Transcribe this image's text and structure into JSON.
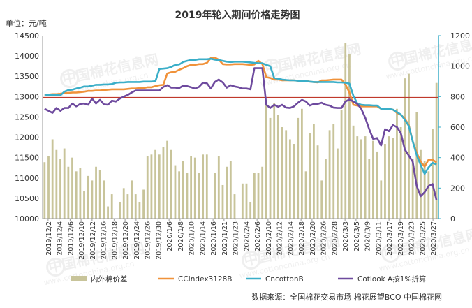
{
  "chart_data": {
    "type": "bar",
    "title": "2019年轮入期间价格走势图",
    "unit_label": "单位：元/吨",
    "source": "数据来源：全国棉花交易市场  棉花展望BCO  中国棉花网",
    "watermark": "中国棉花信息网",
    "watermark_url": "www.cottonchina.org.cn",
    "left_axis": {
      "ylim": [
        10000,
        14500
      ],
      "ticks": [
        10000,
        10500,
        11000,
        11500,
        12000,
        12500,
        13000,
        13500,
        14000,
        14500
      ]
    },
    "right_axis": {
      "ylim": [
        0,
        1200
      ],
      "ticks": [
        0,
        200,
        400,
        600,
        800,
        1000,
        1200
      ]
    },
    "x_labels": [
      "2019/12/2",
      "2019/12/4",
      "2019/12/6",
      "2019/12/10",
      "2019/12/12",
      "2019/12/16",
      "2019/12/18",
      "2019/12/20",
      "2019/12/24",
      "2019/12/26",
      "2019/12/30",
      "2020/1/6",
      "2020/1/8",
      "2020/1/10",
      "2020/1/14",
      "2020/1/16",
      "2020/1/21",
      "2020/1/23",
      "2020/2/4",
      "2020/2/6",
      "2020/2/10",
      "2020/2/12",
      "2020/2/14",
      "2020/2/18",
      "2020/2/20",
      "2020/2/26",
      "2020/2/28",
      "2020/3/3",
      "2020/3/5",
      "2020/3/9",
      "2020/3/11",
      "2020/3/17",
      "2020/3/19",
      "2020/3/23",
      "2020/3/25",
      "2020/3/27"
    ],
    "reference_line": {
      "axis": "left",
      "value": 12980,
      "color": "#c0392b"
    },
    "series": [
      {
        "name": "内外棉价差",
        "type": "bar",
        "axis": "right",
        "color": "#c8c49a",
        "values": [
          370,
          410,
          520,
          450,
          390,
          460,
          340,
          400,
          310,
          330,
          180,
          280,
          250,
          340,
          320,
          250,
          80,
          160,
          0,
          110,
          200,
          160,
          250,
          160,
          110,
          190,
          410,
          420,
          450,
          420,
          470,
          510,
          450,
          350,
          310,
          380,
          300,
          410,
          400,
          300,
          420,
          420,
          0,
          300,
          410,
          220,
          340,
          380,
          160,
          0,
          230,
          230,
          110,
          300,
          300,
          340,
          760,
          660,
          760,
          680,
          600,
          580,
          520,
          490,
          660,
          720,
          310,
          560,
          620,
          480,
          250,
          390,
          580,
          620,
          460,
          710,
          1150,
          1080,
          610,
          540,
          520,
          540,
          390,
          510,
          440,
          250,
          490,
          540,
          530,
          720,
          600,
          920,
          950,
          390,
          700,
          450,
          380,
          310,
          590,
          890
        ]
      },
      {
        "name": "CCIndex3128B",
        "type": "line",
        "axis": "left",
        "color": "#f0923a",
        "values": [
          13050,
          13050,
          13060,
          13060,
          13070,
          13090,
          13090,
          13100,
          13100,
          13110,
          13120,
          13140,
          13140,
          13150,
          13150,
          13160,
          13170,
          13180,
          13180,
          13180,
          13180,
          13190,
          13200,
          13200,
          13210,
          13210,
          13230,
          13230,
          13260,
          13280,
          13290,
          13570,
          13600,
          13610,
          13660,
          13700,
          13750,
          13780,
          13780,
          13800,
          13800,
          13830,
          13950,
          13960,
          13910,
          13800,
          13790,
          13790,
          13800,
          13800,
          13800,
          13790,
          13780,
          13790,
          13880,
          13800,
          13480,
          13460,
          13420,
          13420,
          13400,
          13400,
          13400,
          13400,
          13390,
          13390,
          13390,
          13370,
          13360,
          13350,
          13400,
          13400,
          13410,
          13420,
          13420,
          13420,
          13300,
          13100,
          12800,
          12780,
          12760,
          12760,
          12760,
          12760,
          12760,
          12700,
          12700,
          12700,
          12680,
          12600,
          12550,
          12460,
          12300,
          11900,
          11620,
          11400,
          11280,
          11450,
          11450,
          11380
        ]
      },
      {
        "name": "CncottonB",
        "type": "line",
        "axis": "left",
        "color": "#3aaec8",
        "values": [
          13050,
          13040,
          13040,
          13040,
          13030,
          13120,
          13160,
          13170,
          13200,
          13220,
          13250,
          13250,
          13270,
          13290,
          13290,
          13300,
          13300,
          13310,
          13340,
          13350,
          13350,
          13360,
          13360,
          13360,
          13360,
          13370,
          13370,
          13370,
          13380,
          13680,
          13690,
          13700,
          13730,
          13780,
          13790,
          13850,
          13880,
          13900,
          13900,
          13920,
          13920,
          13920,
          13930,
          13910,
          13900,
          13880,
          13860,
          13850,
          13860,
          13860,
          13860,
          13850,
          13840,
          13830,
          13820,
          13820,
          13780,
          13750,
          13460,
          13440,
          13420,
          13410,
          13400,
          13400,
          13390,
          13380,
          13380,
          13370,
          13360,
          13360,
          13360,
          13360,
          13360,
          13360,
          13350,
          13350,
          13340,
          13320,
          13020,
          12830,
          12800,
          12790,
          12790,
          12780,
          12780,
          12700,
          12700,
          12700,
          12680,
          12620,
          12560,
          12430,
          12280,
          11900,
          11560,
          11320,
          11100,
          11260,
          11370,
          11330
        ]
      },
      {
        "name": "Cotlook A按1%折算",
        "type": "line",
        "axis": "left",
        "color": "#6e4a9e",
        "values": [
          12700,
          12650,
          12600,
          12720,
          12650,
          12720,
          12720,
          12830,
          12760,
          12820,
          12830,
          12800,
          12950,
          12830,
          12920,
          12810,
          12800,
          12900,
          12880,
          12950,
          13000,
          13040,
          13100,
          13150,
          13150,
          13150,
          13150,
          13150,
          13150,
          13150,
          13240,
          13280,
          13220,
          13220,
          13210,
          13270,
          13260,
          13230,
          13200,
          13240,
          13340,
          13330,
          13200,
          13360,
          13420,
          13350,
          13220,
          13280,
          13250,
          13230,
          13200,
          13200,
          13180,
          13700,
          13700,
          13700,
          12800,
          12720,
          12800,
          12750,
          12800,
          12730,
          12720,
          12760,
          12850,
          12920,
          12880,
          12780,
          12820,
          12820,
          12850,
          12800,
          12780,
          12730,
          12720,
          12720,
          12880,
          12930,
          12880,
          12820,
          12700,
          12480,
          12200,
          11960,
          11980,
          11800,
          12200,
          12150,
          12300,
          12250,
          12100,
          11700,
          11550,
          11400,
          10800,
          10550,
          10650,
          10800,
          10850,
          10450
        ]
      }
    ]
  }
}
